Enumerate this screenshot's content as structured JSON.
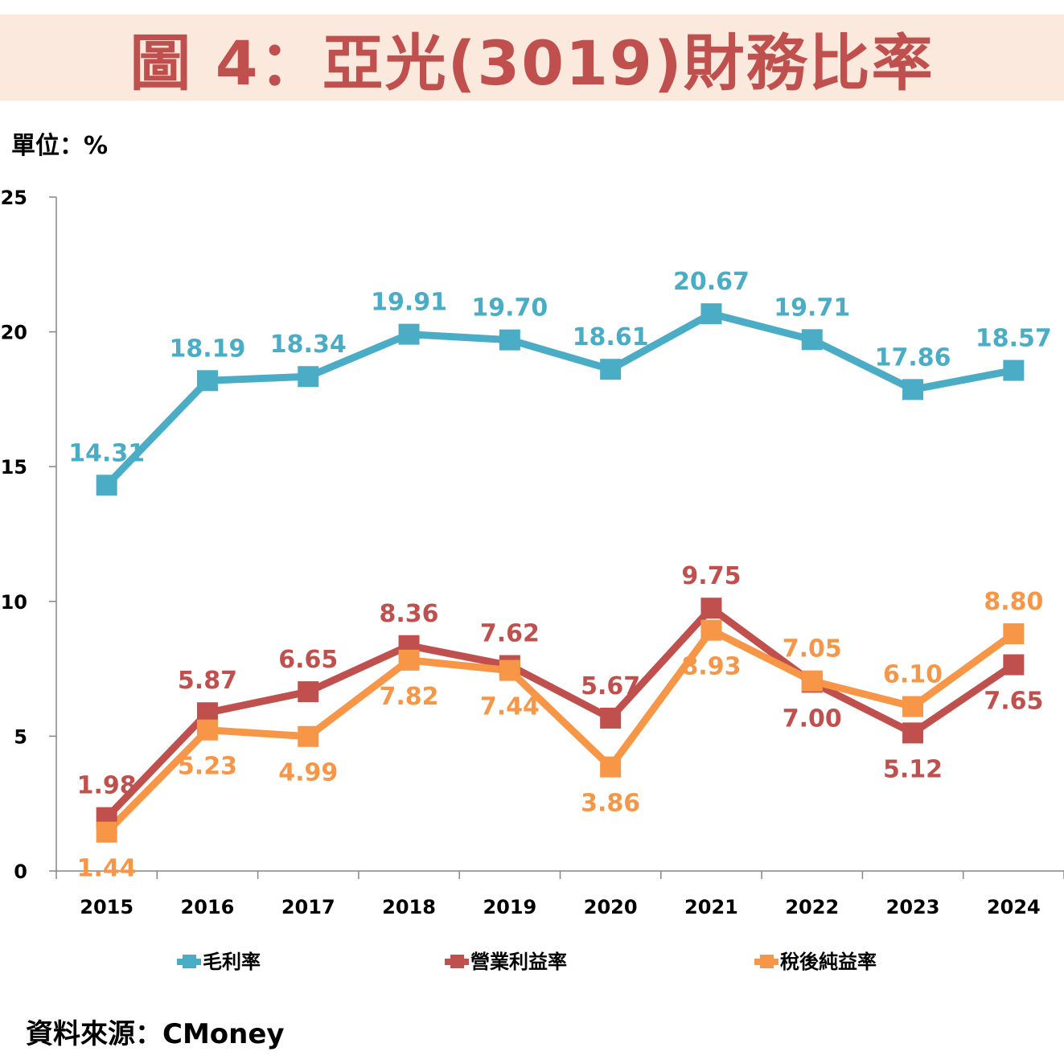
{
  "title": "圖 4：亞光(3019)財務比率",
  "unit_label": "單位：%",
  "source_label": "資料來源：CMoney",
  "chart_data": {
    "type": "line",
    "title": "圖 4：亞光(3019)財務比率",
    "xlabel": "",
    "ylabel": "單位：%",
    "categories": [
      "2015",
      "2016",
      "2017",
      "2018",
      "2019",
      "2020",
      "2021",
      "2022",
      "2023",
      "2024"
    ],
    "ylim": [
      0,
      25
    ],
    "yticks": [
      0,
      5,
      10,
      15,
      20,
      25
    ],
    "grid": false,
    "legend_position": "bottom",
    "series": [
      {
        "name": "毛利率",
        "color": "#4bacc6",
        "values": [
          14.31,
          18.19,
          18.34,
          19.91,
          19.7,
          18.61,
          20.67,
          19.71,
          17.86,
          18.57
        ],
        "labels": [
          "14.31",
          "18.19",
          "18.34",
          "19.91",
          "19.70",
          "18.61",
          "20.67",
          "19.71",
          "17.86",
          "18.57"
        ],
        "label_pos": [
          "above",
          "above",
          "above",
          "above",
          "above",
          "above",
          "above",
          "above",
          "above",
          "above"
        ]
      },
      {
        "name": "營業利益率",
        "color": "#c0504d",
        "values": [
          1.98,
          5.87,
          6.65,
          8.36,
          7.62,
          5.67,
          9.75,
          7.0,
          5.12,
          7.65
        ],
        "labels": [
          "1.98",
          "5.87",
          "6.65",
          "8.36",
          "7.62",
          "5.67",
          "9.75",
          "7.00",
          "5.12",
          "7.65"
        ],
        "label_pos": [
          "above",
          "above",
          "above",
          "above",
          "above",
          "above",
          "above",
          "below",
          "below",
          "below"
        ]
      },
      {
        "name": "稅後純益率",
        "color": "#f79646",
        "values": [
          1.44,
          5.23,
          4.99,
          7.82,
          7.44,
          3.86,
          8.93,
          7.05,
          6.1,
          8.8
        ],
        "labels": [
          "1.44",
          "5.23",
          "4.99",
          "7.82",
          "7.44",
          "3.86",
          "8.93",
          "7.05",
          "6.10",
          "8.80"
        ],
        "label_pos": [
          "below",
          "below",
          "below",
          "below",
          "below",
          "below",
          "below",
          "above",
          "above",
          "above"
        ]
      }
    ]
  }
}
